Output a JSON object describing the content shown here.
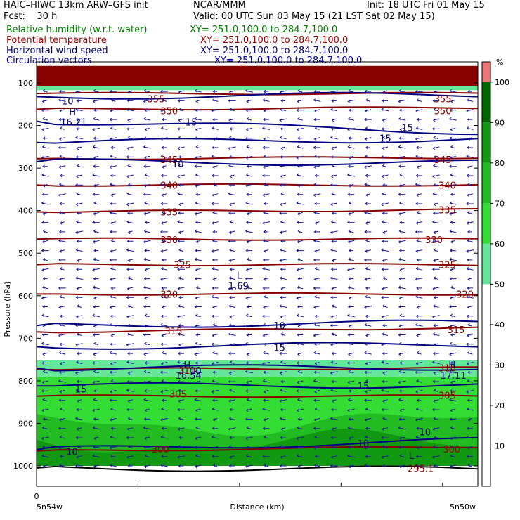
{
  "header": {
    "model": "HAIC–HIWC 13km ARW–GFS init",
    "org": "NCAR/MMM",
    "init": "Init: 18 UTC Fri 01 May 15",
    "fcst": "Fcst:    30 h",
    "valid": "Valid: 00 UTC Sun 03 May 15 (21 LST Sat 02 May 15)",
    "fields": [
      {
        "name": "Relative humidity (w.r.t. water)",
        "xy": "XY= 251.0,100.0 to 284.7,100.0",
        "color": "#008000"
      },
      {
        "name": "Potential temperature",
        "xy": "XY= 251.0,100.0 to 284.7,100.0",
        "color": "#990000"
      },
      {
        "name": "Horizontal wind speed",
        "xy": "XY= 251.0,100.0 to 284.7,100.0",
        "color": "#000066"
      },
      {
        "name": "Circulation vectors",
        "xy": "XY= 251.0,100.0 to 284.7,100.0",
        "color": "#000099"
      }
    ]
  },
  "chart_data": {
    "type": "cross-section",
    "ylabel": "Pressure (hPa)",
    "xlabel": "Distance (km)",
    "y_ticks": [
      100,
      200,
      300,
      400,
      500,
      600,
      700,
      800,
      900,
      1000
    ],
    "ylim": [
      1050,
      50
    ],
    "x_tick_label": "0",
    "x_left_label": "5n54w",
    "x_right_label": "5n50w",
    "colorbar": {
      "unit": "%",
      "ticks": [
        10,
        20,
        30,
        40,
        50,
        60,
        70,
        80,
        90,
        100
      ],
      "bins": [
        {
          "from": 50,
          "to": 60,
          "color": "#66e699"
        },
        {
          "from": 60,
          "to": 70,
          "color": "#33dd33"
        },
        {
          "from": 70,
          "to": 80,
          "color": "#22bb22"
        },
        {
          "from": 80,
          "to": 90,
          "color": "#119911"
        },
        {
          "from": 90,
          "to": 100,
          "color": "#006600"
        },
        {
          "from": 100,
          "to": 105,
          "color": "#ee7777"
        }
      ]
    },
    "theta_labels": [
      {
        "v": "355",
        "p": 137,
        "x": 0.27
      },
      {
        "v": "355",
        "p": 137,
        "x": 0.92
      },
      {
        "v": "350",
        "p": 165,
        "x": 0.3
      },
      {
        "v": "350",
        "p": 165,
        "x": 0.92
      },
      {
        "v": "345",
        "p": 280,
        "x": 0.3
      },
      {
        "v": "345",
        "p": 280,
        "x": 0.92
      },
      {
        "v": "340",
        "p": 340,
        "x": 0.3
      },
      {
        "v": "340",
        "p": 340,
        "x": 0.93
      },
      {
        "v": "335",
        "p": 403,
        "x": 0.3
      },
      {
        "v": "335",
        "p": 398,
        "x": 0.93
      },
      {
        "v": "330",
        "p": 468,
        "x": 0.3
      },
      {
        "v": "330",
        "p": 468,
        "x": 0.9
      },
      {
        "v": "325",
        "p": 527,
        "x": 0.33
      },
      {
        "v": "325",
        "p": 527,
        "x": 0.93
      },
      {
        "v": "320",
        "p": 596,
        "x": 0.3
      },
      {
        "v": "320",
        "p": 596,
        "x": 0.97
      },
      {
        "v": "315",
        "p": 683,
        "x": 0.31
      },
      {
        "v": "315",
        "p": 680,
        "x": 0.95
      },
      {
        "v": "310",
        "p": 775,
        "x": 0.34
      },
      {
        "v": "310",
        "p": 770,
        "x": 0.93
      },
      {
        "v": "305",
        "p": 831,
        "x": 0.32
      },
      {
        "v": "305",
        "p": 834,
        "x": 0.93
      },
      {
        "v": "300",
        "p": 960,
        "x": 0.28
      },
      {
        "v": "300",
        "p": 960,
        "x": 0.94
      },
      {
        "v": "295.1",
        "p": 1006,
        "x": 0.86
      }
    ],
    "wind_labels": [
      {
        "v": "10",
        "p": 142,
        "x": 0.07
      },
      {
        "v": "15",
        "p": 192,
        "x": 0.35
      },
      {
        "v": "15",
        "p": 205,
        "x": 0.84
      },
      {
        "v": "15",
        "p": 230,
        "x": 0.79
      },
      {
        "v": "10",
        "p": 290,
        "x": 0.32
      },
      {
        "v": "10",
        "p": 670,
        "x": 0.55
      },
      {
        "v": "15",
        "p": 722,
        "x": 0.55
      },
      {
        "v": "10",
        "p": 775,
        "x": 0.36
      },
      {
        "v": "15",
        "p": 812,
        "x": 0.74
      },
      {
        "v": "15",
        "p": 819,
        "x": 0.1
      },
      {
        "v": "10",
        "p": 920,
        "x": 0.88
      },
      {
        "v": "10",
        "p": 947,
        "x": 0.74
      },
      {
        "v": "10",
        "p": 966,
        "x": 0.08
      }
    ],
    "extrema": [
      {
        "t": "H",
        "v": "16.21",
        "p": 185,
        "x": 0.08
      },
      {
        "t": "L",
        "v": "1.69",
        "p": 570,
        "x": 0.46
      },
      {
        "t": "H",
        "v": "16.54",
        "p": 780,
        "x": 0.34
      },
      {
        "t": "H",
        "v": "17.11",
        "p": 780,
        "x": 0.94
      },
      {
        "t": "L",
        "v": "",
        "p": 993,
        "x": 0.85
      }
    ],
    "theta_levels": [
      {
        "v": 355,
        "pl": 125,
        "pr": 125
      },
      {
        "v": 350,
        "pl": 162,
        "pr": 158
      },
      {
        "v": 345,
        "pl": 278,
        "pr": 275
      },
      {
        "v": 340,
        "pl": 340,
        "pr": 340
      },
      {
        "v": 335,
        "pl": 403,
        "pr": 398
      },
      {
        "v": 330,
        "pl": 467,
        "pr": 467
      },
      {
        "v": 325,
        "pl": 527,
        "pr": 527
      },
      {
        "v": 320,
        "pl": 596,
        "pr": 596
      },
      {
        "v": 315,
        "pl": 685,
        "pr": 675
      },
      {
        "v": 310,
        "pl": 773,
        "pr": 770
      },
      {
        "v": 305,
        "pl": 836,
        "pr": 836
      },
      {
        "v": 300,
        "pl": 965,
        "pr": 955
      }
    ],
    "rh_layers": [
      {
        "pt": 60,
        "pb": 107,
        "color": "#880000"
      },
      {
        "pt": 107,
        "pb": 117,
        "color": "#66e699"
      },
      {
        "pt": 752,
        "pb": 790,
        "color": "#66e699"
      },
      {
        "pt": 790,
        "pb": 820,
        "color": "#33dd33"
      },
      {
        "pt": 820,
        "pb": 1000,
        "color": "#33dd33"
      },
      {
        "pt": 900,
        "pb": 1000,
        "color": "#22bb22"
      },
      {
        "pt": 945,
        "pb": 1000,
        "color": "#119911"
      }
    ]
  }
}
